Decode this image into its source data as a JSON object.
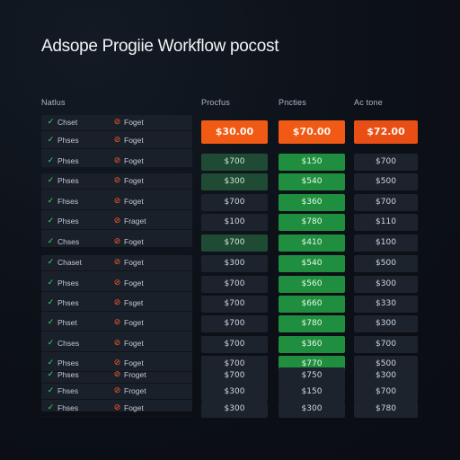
{
  "title": "Adsope Progiie Workflow pocost",
  "columns": [
    "Natlus",
    "Procfus",
    "Pncties",
    "Ac tone"
  ],
  "price_row": [
    "$30.00",
    "$70.00",
    "$72.00"
  ],
  "rows": [
    {
      "a": "Chset",
      "b": "Foget",
      "c1": "",
      "c2": "",
      "c3": "",
      "s1": "",
      "s2": ""
    },
    {
      "a": "Phses",
      "b": "Foget",
      "c1": "",
      "c2": "",
      "c3": "",
      "s1": "",
      "s2": ""
    },
    {
      "a": "Phses",
      "b": "Foget",
      "c1": "$700",
      "c2": "$150",
      "c3": "$700",
      "s1": "dg",
      "s2": "g"
    },
    {
      "a": "Phses",
      "b": "Foget",
      "c1": "$300",
      "c2": "$540",
      "c3": "$500",
      "s1": "dg",
      "s2": "g"
    },
    {
      "a": "Fhses",
      "b": "Foget",
      "c1": "$700",
      "c2": "$360",
      "c3": "$700",
      "s1": "",
      "s2": "g"
    },
    {
      "a": "Phses",
      "b": "Fraget",
      "c1": "$100",
      "c2": "$780",
      "c3": "$110",
      "s1": "",
      "s2": "g"
    },
    {
      "a": "Chses",
      "b": "Foget",
      "c1": "$700",
      "c2": "$410",
      "c3": "$100",
      "s1": "dg",
      "s2": "g"
    },
    {
      "a": "Chaset",
      "b": "Foget",
      "c1": "$300",
      "c2": "$540",
      "c3": "$500",
      "s1": "",
      "s2": "g"
    },
    {
      "a": "Phses",
      "b": "Foget",
      "c1": "$700",
      "c2": "$560",
      "c3": "$300",
      "s1": "",
      "s2": "g"
    },
    {
      "a": "Phses",
      "b": "Fsget",
      "c1": "$700",
      "c2": "$660",
      "c3": "$330",
      "s1": "",
      "s2": "g"
    },
    {
      "a": "Phset",
      "b": "Foget",
      "c1": "$700",
      "c2": "$780",
      "c3": "$300",
      "s1": "",
      "s2": "g"
    },
    {
      "a": "Chses",
      "b": "Foget",
      "c1": "$700",
      "c2": "$360",
      "c3": "$700",
      "s1": "",
      "s2": "g"
    },
    {
      "a": "Phses",
      "b": "Foget",
      "c1": "$700",
      "c2": "$770",
      "c3": "$500",
      "s1": "",
      "s2": "g"
    },
    {
      "a": "Phses",
      "b": "Froget",
      "c1": "$700",
      "c2": "$750",
      "c3": "$300",
      "s1": "",
      "s2": ""
    },
    {
      "a": "Fhses",
      "b": "Froget",
      "c1": "$300",
      "c2": "$150",
      "c3": "$700",
      "s1": "",
      "s2": ""
    },
    {
      "a": "Fhses",
      "b": "Foget",
      "c1": "$300",
      "c2": "$300",
      "c3": "$780",
      "s1": "",
      "s2": ""
    }
  ],
  "colors": {
    "accent_orange": "#f05a14",
    "green": "#1f8f3f",
    "dark_green": "#1f4a34",
    "check_green": "#3ddc6a",
    "x_red": "#ff5a2c"
  },
  "icons": {
    "ok": "check-icon",
    "fail": "x-icon"
  }
}
